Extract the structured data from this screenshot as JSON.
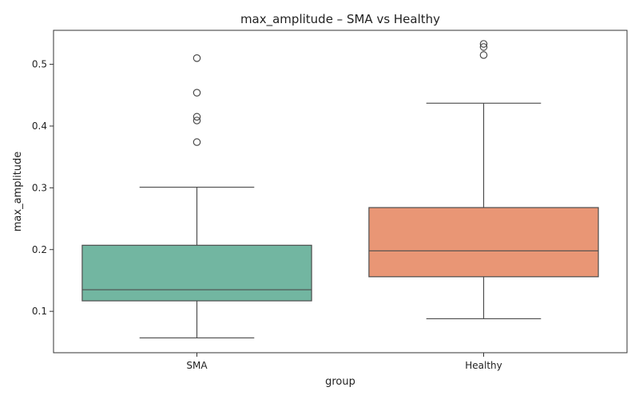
{
  "chart_data": {
    "type": "box",
    "title": "max_amplitude – SMA vs Healthy",
    "xlabel": "group",
    "ylabel": "max_amplitude",
    "ylim": [
      0.033,
      0.555
    ],
    "yticks": [
      0.1,
      0.2,
      0.3,
      0.4,
      0.5
    ],
    "categories": [
      "SMA",
      "Healthy"
    ],
    "grid": false,
    "legend": "none",
    "boxes": [
      {
        "category": "SMA",
        "color": "#72b6a1",
        "whisker_low": 0.057,
        "q1": 0.117,
        "median": 0.135,
        "q3": 0.207,
        "whisker_high": 0.301,
        "outliers": [
          0.374,
          0.409,
          0.415,
          0.454,
          0.51
        ]
      },
      {
        "category": "Healthy",
        "color": "#e99675",
        "whisker_low": 0.088,
        "q1": 0.156,
        "median": 0.198,
        "q3": 0.268,
        "whisker_high": 0.437,
        "outliers": [
          0.515,
          0.528,
          0.533
        ]
      }
    ]
  }
}
